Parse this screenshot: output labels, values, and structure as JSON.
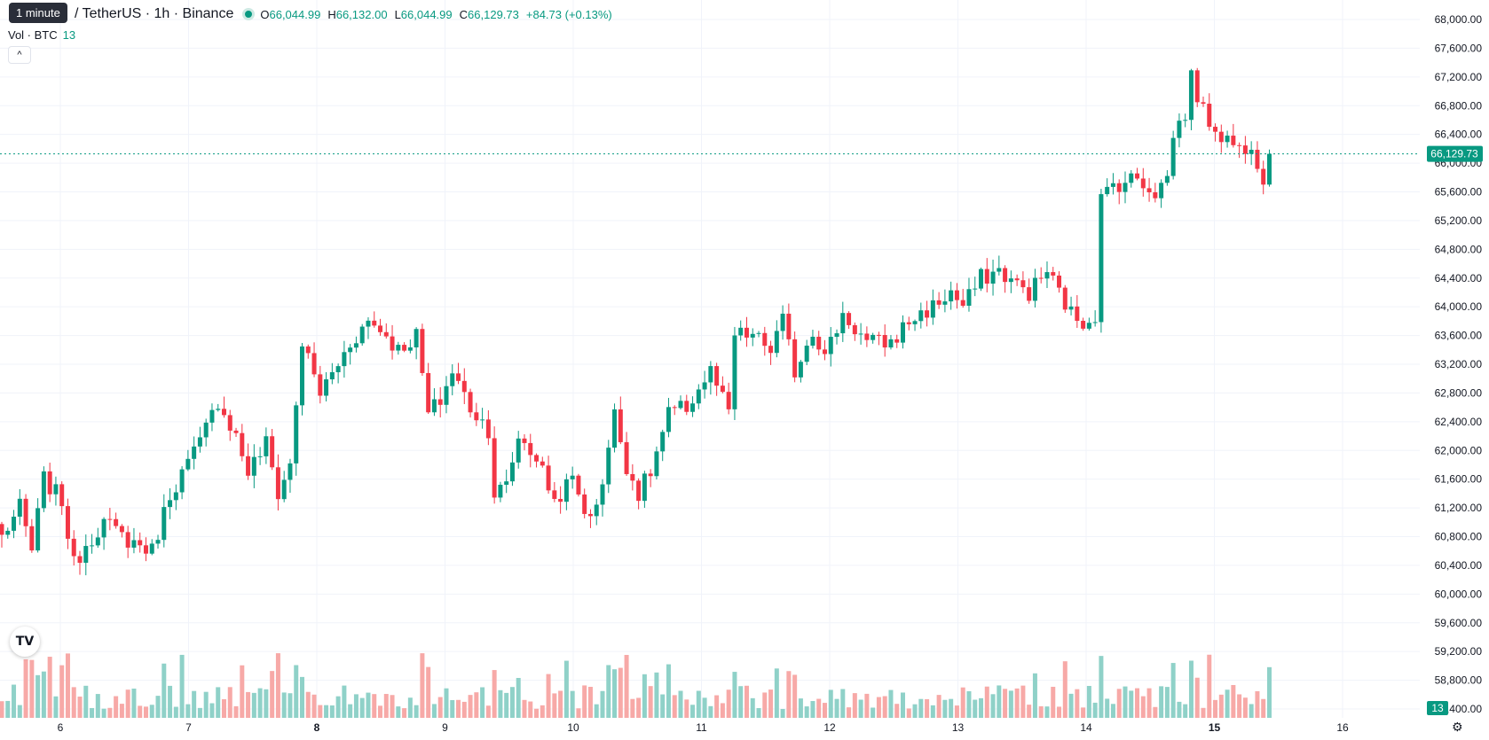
{
  "header": {
    "tooltip": "1 minute",
    "symbol_title": "/ TetherUS · 1h · Binance",
    "ohlc": {
      "o_label": "O",
      "o": "66,044.99",
      "h_label": "H",
      "h": "66,132.00",
      "l_label": "L",
      "l": "66,044.99",
      "c_label": "C",
      "c": "66,129.73",
      "change": "+84.73 (+0.13%)"
    },
    "volume_label": "Vol · BTC",
    "volume_value": "13",
    "collapse_glyph": "^"
  },
  "colors": {
    "up": "#089981",
    "down": "#f23645",
    "up_vol": "#8fd1c8",
    "down_vol": "#f7a9a7",
    "grid": "#f0f3fa"
  },
  "icons": {
    "logo": "tradingview-logo-icon",
    "settings": "settings-icon"
  },
  "chart_data": {
    "type": "candlestick",
    "y_axis": {
      "min": 58200,
      "max": 68200,
      "ticks": [
        58400,
        58800,
        59200,
        59600,
        60000,
        60400,
        60800,
        61200,
        61600,
        62000,
        62400,
        62800,
        63200,
        63600,
        64000,
        64400,
        64800,
        65200,
        65600,
        66000,
        66400,
        66800,
        67200,
        67600,
        68000
      ],
      "tick_labels": [
        "58,400.00",
        "58,800.00",
        "59,200.00",
        "59,600.00",
        "60,000.00",
        "60,400.00",
        "60,800.00",
        "61,200.00",
        "61,600.00",
        "62,000.00",
        "62,400.00",
        "62,800.00",
        "63,200.00",
        "63,600.00",
        "64,000.00",
        "64,400.00",
        "64,800.00",
        "65,200.00",
        "65,600.00",
        "66,000.00",
        "66,400.00",
        "66,800.00",
        "67,200.00",
        "67,600.00",
        "68,000.00"
      ]
    },
    "x_axis": {
      "labels": [
        "6",
        "7",
        "8",
        "9",
        "10",
        "11",
        "12",
        "13",
        "14",
        "15",
        "16"
      ],
      "bold": [
        "8",
        "15"
      ]
    },
    "last_price": 66129.73,
    "last_price_label": "66,129.73",
    "volume_badge": "13",
    "anchors": [
      [
        0,
        60800
      ],
      [
        3,
        61200
      ],
      [
        5,
        60600
      ],
      [
        7,
        61600
      ],
      [
        10,
        61300
      ],
      [
        12,
        60400
      ],
      [
        14,
        60700
      ],
      [
        17,
        61000
      ],
      [
        20,
        60800
      ],
      [
        25,
        60600
      ],
      [
        28,
        61400
      ],
      [
        33,
        62100
      ],
      [
        36,
        62700
      ],
      [
        39,
        62200
      ],
      [
        41,
        61700
      ],
      [
        44,
        62100
      ],
      [
        46,
        61400
      ],
      [
        48,
        61800
      ],
      [
        50,
        63500
      ],
      [
        53,
        62800
      ],
      [
        56,
        63200
      ],
      [
        58,
        63500
      ],
      [
        61,
        63800
      ],
      [
        63,
        63700
      ],
      [
        66,
        63400
      ],
      [
        69,
        63600
      ],
      [
        71,
        62500
      ],
      [
        73,
        62700
      ],
      [
        75,
        63100
      ],
      [
        78,
        62600
      ],
      [
        81,
        62300
      ],
      [
        82,
        61400
      ],
      [
        84,
        61500
      ],
      [
        86,
        62200
      ],
      [
        89,
        61900
      ],
      [
        92,
        61300
      ],
      [
        95,
        61600
      ],
      [
        98,
        61000
      ],
      [
        100,
        61600
      ],
      [
        102,
        62500
      ],
      [
        104,
        61800
      ],
      [
        106,
        61400
      ],
      [
        108,
        61700
      ],
      [
        111,
        62500
      ],
      [
        114,
        62600
      ],
      [
        118,
        63100
      ],
      [
        121,
        62500
      ],
      [
        122,
        63600
      ],
      [
        125,
        63600
      ],
      [
        128,
        63400
      ],
      [
        130,
        63800
      ],
      [
        132,
        63100
      ],
      [
        135,
        63700
      ],
      [
        137,
        63300
      ],
      [
        140,
        63900
      ],
      [
        142,
        63700
      ],
      [
        144,
        63500
      ],
      [
        148,
        63500
      ],
      [
        151,
        63800
      ],
      [
        155,
        64000
      ],
      [
        158,
        64200
      ],
      [
        160,
        64000
      ],
      [
        163,
        64400
      ],
      [
        166,
        64500
      ],
      [
        169,
        64300
      ],
      [
        171,
        64200
      ],
      [
        174,
        64500
      ],
      [
        176,
        64200
      ],
      [
        178,
        63900
      ],
      [
        180,
        63800
      ],
      [
        182,
        63900
      ],
      [
        183,
        65500
      ],
      [
        185,
        65700
      ],
      [
        189,
        65800
      ],
      [
        192,
        65600
      ],
      [
        194,
        65800
      ],
      [
        195,
        66400
      ],
      [
        197,
        66700
      ],
      [
        198,
        67200
      ],
      [
        200,
        66700
      ],
      [
        203,
        66400
      ],
      [
        206,
        66200
      ],
      [
        208,
        66300
      ],
      [
        210,
        65800
      ],
      [
        211,
        66130
      ]
    ],
    "candle_count": 212,
    "first_candle_x": 2,
    "candle_spacing": 6.77,
    "first_day_x": 68,
    "day_spacing": 144.5
  }
}
